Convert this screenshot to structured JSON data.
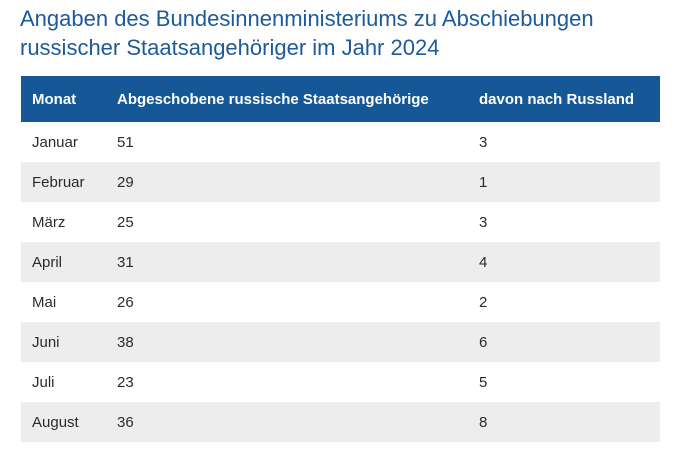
{
  "title": {
    "line1": "Angaben des Bundesinnenministeriums zu Abschiebungen",
    "line2": "russischer Staatsangehöriger im Jahr 2024"
  },
  "chart_data": {
    "type": "table",
    "columns": [
      "Monat",
      "Abgeschobene russische Staatsangehörige",
      "davon nach Russland"
    ],
    "rows": [
      [
        "Januar",
        "51",
        "3"
      ],
      [
        "Februar",
        "29",
        "1"
      ],
      [
        "März",
        "25",
        "3"
      ],
      [
        "April",
        "31",
        "4"
      ],
      [
        "Mai",
        "26",
        "2"
      ],
      [
        "Juni",
        "38",
        "6"
      ],
      [
        "Juli",
        "23",
        "5"
      ],
      [
        "August",
        "36",
        "8"
      ]
    ]
  },
  "colors": {
    "title": "#1d5a9c",
    "header_bg": "#155797",
    "header_text": "#ffffff",
    "row_alt": "#ededed",
    "row": "#ffffff",
    "cell_text": "#2b2b2b"
  }
}
